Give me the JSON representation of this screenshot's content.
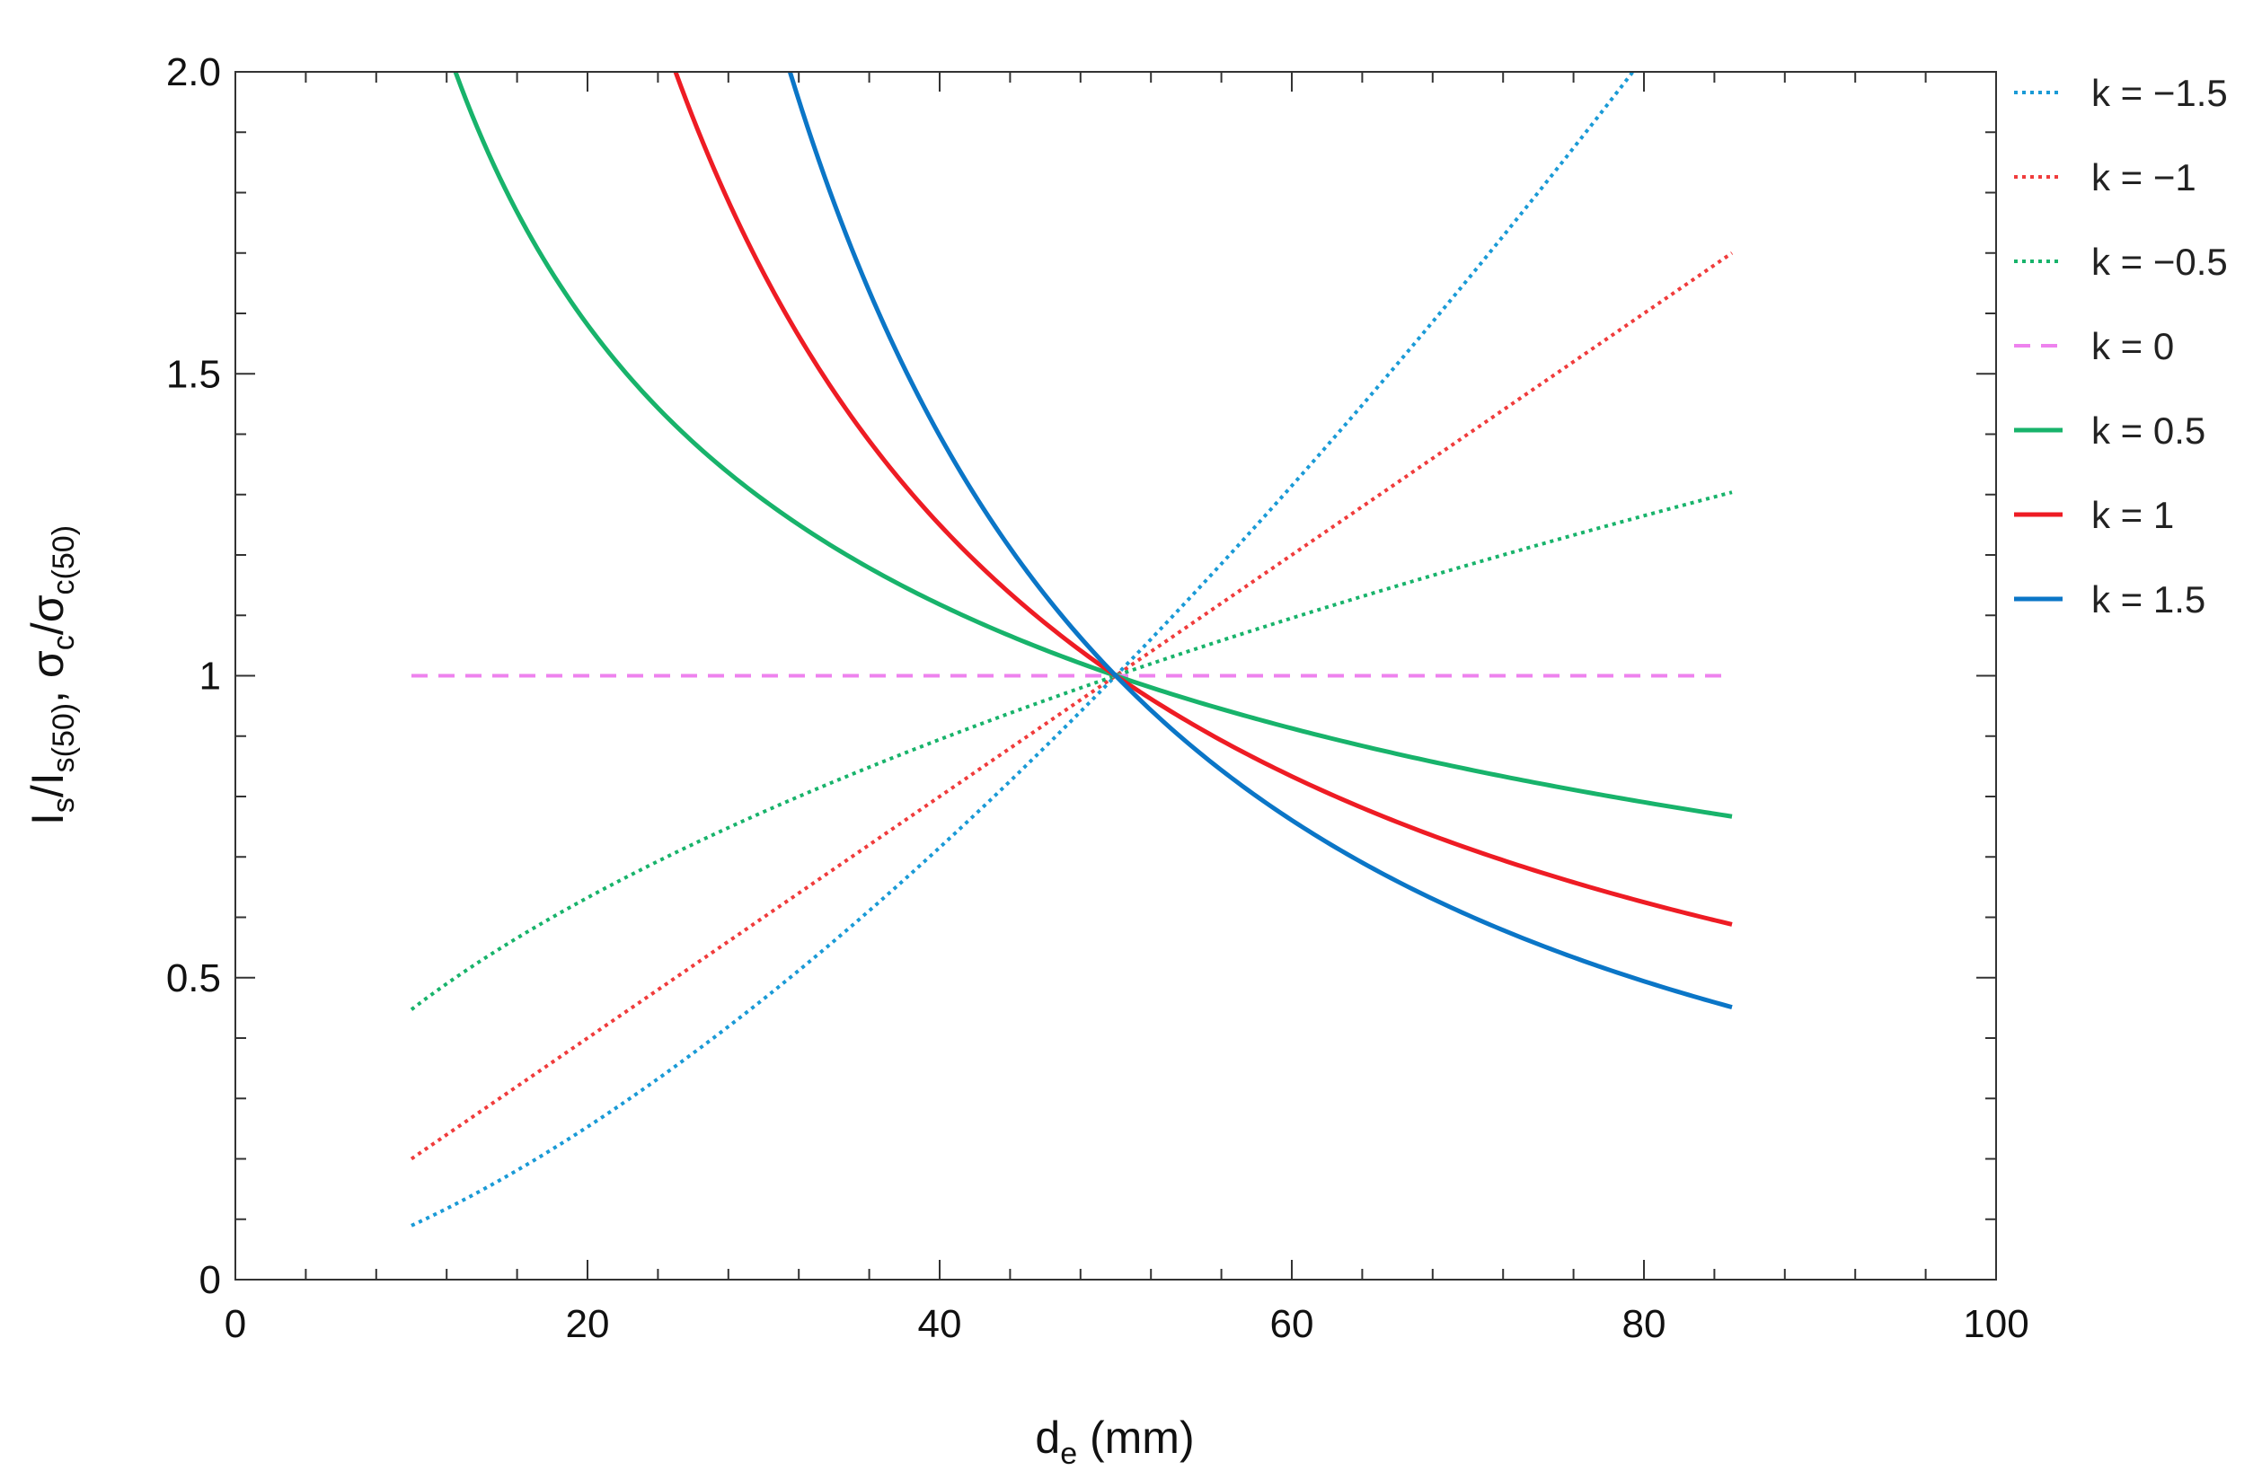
{
  "chart_data": {
    "type": "line",
    "xlabel": {
      "main": "d",
      "sub": "e",
      "rest": " (mm)"
    },
    "ylabel": {
      "p1": "I",
      "s1": "s",
      "p2": "/I",
      "s2": "s(50)",
      "p3": ", σ",
      "s3": "c",
      "p4": "/σ",
      "s4": "c(50)"
    },
    "xlim": [
      0,
      100
    ],
    "ylim": [
      0,
      2
    ],
    "x_ticks": [
      0,
      20,
      40,
      60,
      80,
      100
    ],
    "x_tick_labels": [
      "0",
      "20",
      "40",
      "60",
      "80",
      "100"
    ],
    "y_ticks": [
      0,
      0.5,
      1,
      1.5,
      2
    ],
    "y_tick_labels": [
      "0",
      "0.5",
      "1",
      "1.5",
      "2.0"
    ],
    "x_minor_step": 4,
    "y_minor_step": 0.1,
    "grid": false,
    "legend_position": "right",
    "formula": "y = (x / 50)^(-k)",
    "x_range": [
      10,
      85
    ],
    "series": [
      {
        "name": "k = −1.5",
        "k": -1.5,
        "color": "#1a9ad6",
        "style": "dotted"
      },
      {
        "name": "k = −1",
        "k": -1,
        "color": "#f03c3c",
        "style": "dotted"
      },
      {
        "name": "k = −0.5",
        "k": -0.5,
        "color": "#18b36b",
        "style": "dotted"
      },
      {
        "name": "k = 0",
        "k": 0,
        "color": "#ee82ee",
        "style": "dashed"
      },
      {
        "name": "k = 0.5",
        "k": 0.5,
        "color": "#18b36b",
        "style": "solid"
      },
      {
        "name": "k = 1",
        "k": 1,
        "color": "#ee1c24",
        "style": "solid"
      },
      {
        "name": "k = 1.5",
        "k": 1.5,
        "color": "#0b76c7",
        "style": "solid"
      }
    ]
  }
}
